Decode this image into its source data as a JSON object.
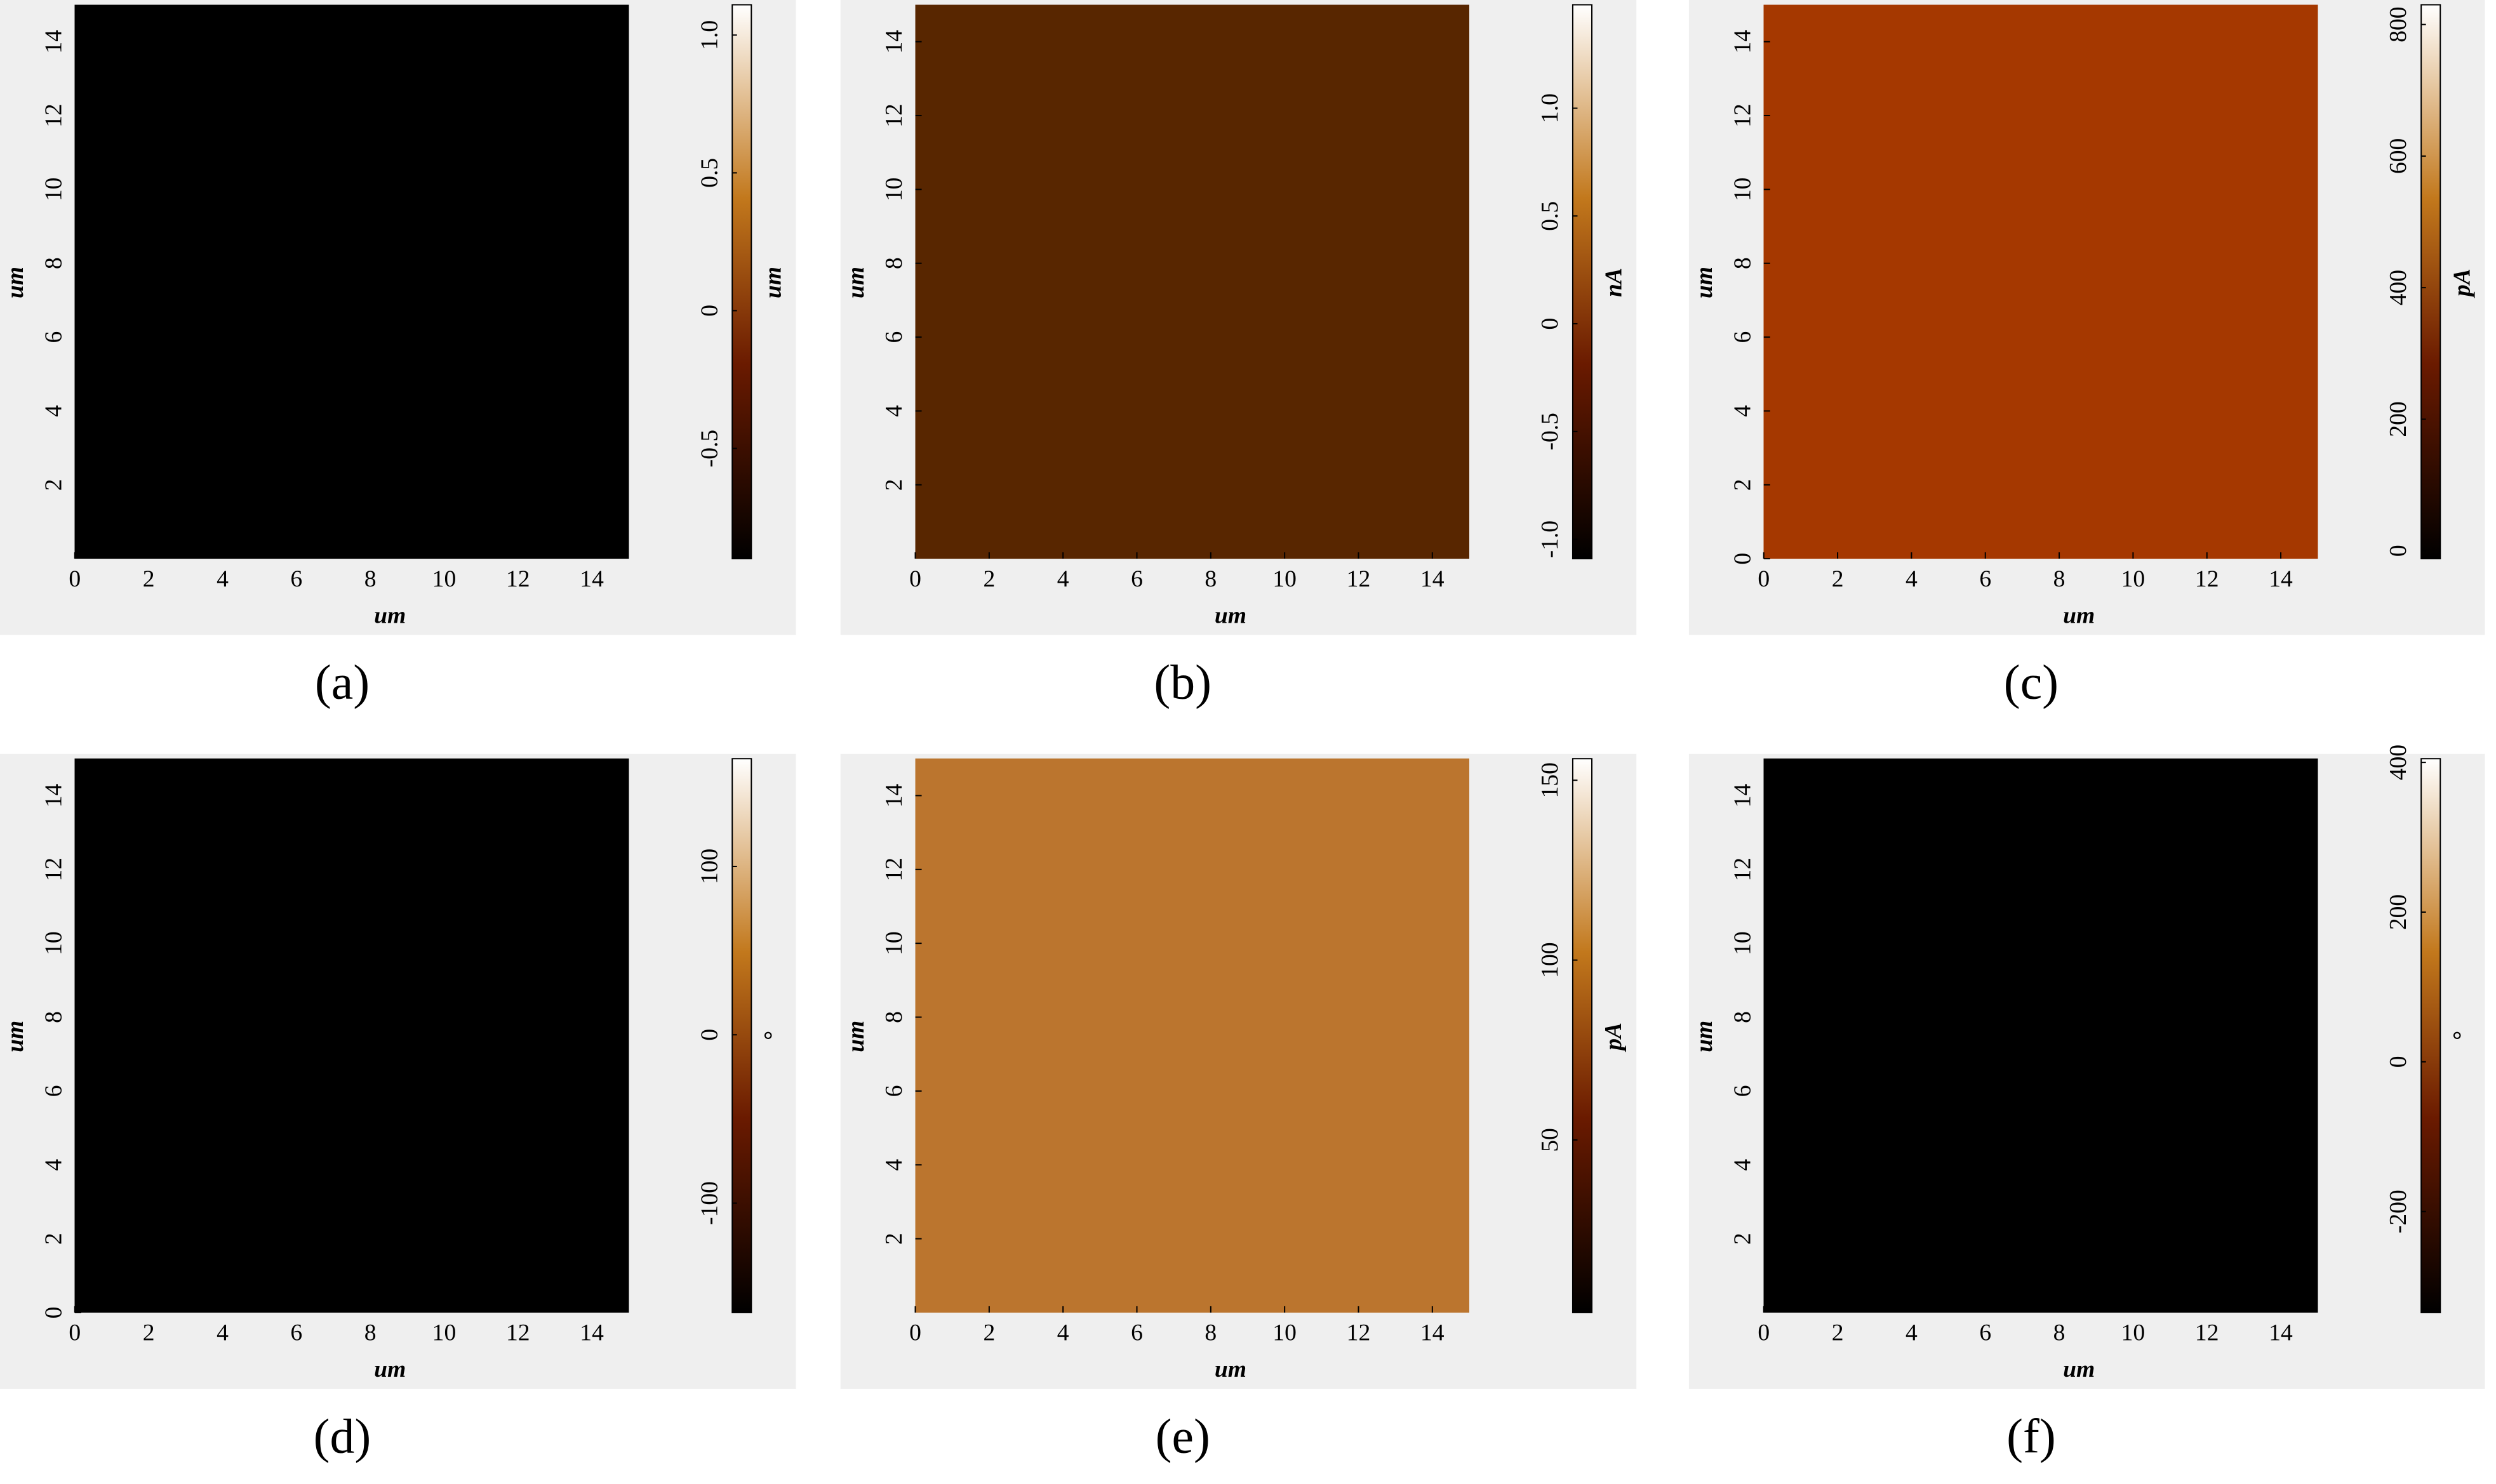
{
  "chart_data": [
    {
      "type": "heatmap",
      "caption": "(a)",
      "xlabel": "um",
      "ylabel": "um",
      "xlim": [
        0,
        15
      ],
      "ylim": [
        0,
        15
      ],
      "xticks": [
        0,
        2,
        4,
        6,
        8,
        10,
        12,
        14
      ],
      "yticks": [
        2,
        4,
        6,
        8,
        10,
        12,
        14
      ],
      "colorbar": {
        "label": "um",
        "lim": [
          -0.9,
          1.11
        ],
        "ticks": [
          -0.5,
          0,
          0.5,
          {
            "value": 1,
            "label": "1.0"
          }
        ]
      }
    },
    {
      "type": "heatmap",
      "caption": "(b)",
      "xlabel": "um",
      "ylabel": "um",
      "xlim": [
        0,
        15
      ],
      "ylim": [
        0,
        15
      ],
      "xticks": [
        0,
        2,
        4,
        6,
        8,
        10,
        12,
        14
      ],
      "yticks": [
        2,
        4,
        6,
        8,
        10,
        12,
        14
      ],
      "colorbar": {
        "label": "nA",
        "lim": [
          -1.09,
          1.48
        ],
        "ticks": [
          {
            "value": -1,
            "label": "-1.0"
          },
          -0.5,
          0,
          0.5,
          {
            "value": 1,
            "label": "1.0"
          }
        ]
      }
    },
    {
      "type": "heatmap",
      "caption": "(c)",
      "xlabel": "um",
      "ylabel": "um",
      "xlim": [
        0,
        15
      ],
      "ylim": [
        0,
        15
      ],
      "xticks": [
        0,
        2,
        4,
        6,
        8,
        10,
        12,
        14
      ],
      "yticks": [
        0,
        2,
        4,
        6,
        8,
        10,
        12,
        14
      ],
      "colorbar": {
        "label": "pA",
        "lim": [
          -12,
          830
        ],
        "ticks": [
          0,
          200,
          400,
          600,
          800
        ]
      }
    },
    {
      "type": "heatmap",
      "caption": "(d)",
      "xlabel": "um",
      "ylabel": "um",
      "xlim": [
        0,
        15
      ],
      "ylim": [
        0,
        15
      ],
      "xticks": [
        0,
        2,
        4,
        6,
        8,
        10,
        12,
        14
      ],
      "yticks": [
        0,
        2,
        4,
        6,
        8,
        10,
        12,
        14
      ],
      "colorbar": {
        "label": "°",
        "lim": [
          -165,
          164
        ],
        "ticks": [
          -100,
          0,
          100
        ]
      }
    },
    {
      "type": "heatmap",
      "caption": "(e)",
      "xlabel": "um",
      "ylabel": "um",
      "xlim": [
        0,
        15
      ],
      "ylim": [
        0,
        15
      ],
      "xticks": [
        0,
        2,
        4,
        6,
        8,
        10,
        12,
        14
      ],
      "yticks": [
        2,
        4,
        6,
        8,
        10,
        12,
        14
      ],
      "colorbar": {
        "label": "pA",
        "lim": [
          2,
          156
        ],
        "ticks": [
          50,
          100,
          150
        ]
      }
    },
    {
      "type": "heatmap",
      "caption": "(f)",
      "xlabel": "um",
      "ylabel": "um",
      "xlim": [
        0,
        15
      ],
      "ylim": [
        0,
        15
      ],
      "xticks": [
        0,
        2,
        4,
        6,
        8,
        10,
        12,
        14
      ],
      "yticks": [
        2,
        4,
        6,
        8,
        10,
        12,
        14
      ],
      "colorbar": {
        "label": "°",
        "lim": [
          -335,
          405
        ],
        "ticks": [
          -200,
          0,
          200,
          400
        ]
      }
    }
  ]
}
